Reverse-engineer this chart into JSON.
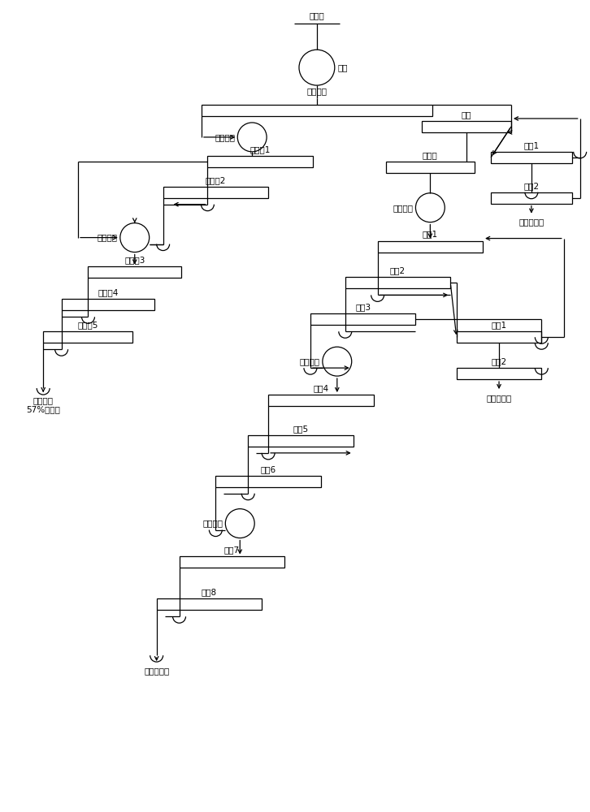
{
  "bg_color": "#ffffff",
  "ec": "#000000",
  "lw": 0.9,
  "fs": 7.5,
  "bh": 0.018,
  "r_circle": 0.022,
  "labels": {
    "moly_ore": "钼原矿",
    "grinding": "磨矿",
    "fast_float": "快速浮选",
    "stage1_regrind_L": "一段再磨",
    "kfj1": "快浮精1",
    "kfj2": "快浮精2",
    "stage2_regrind_L": "二段再磨",
    "kfj3": "快浮精3",
    "kfj4": "快浮精4",
    "kfj5": "快浮精5",
    "grade57": "品位大于\n57%钼精矿",
    "rough_select": "粗选",
    "pre_select": "预精选",
    "cs1": "粗扫1",
    "cs2": "粗扫2",
    "moly_coarse_tail": "钼粗扫尾矿",
    "stage1_regrind_R": "一段再磨",
    "jx1": "精选1",
    "jx2": "精选2",
    "jx3": "精选3",
    "stage2_regrind_R": "二段再磨",
    "jingsao1": "精扫1",
    "jingsao2": "精扫2",
    "moly_fine_tail": "钼精扫尾矿",
    "jx4": "精选4",
    "jx5": "精选5",
    "jx6": "精选6",
    "stage1_scrub": "一段擦洗",
    "jx7": "精选7",
    "jx8": "精选8",
    "common_moly": "普通钼精矿"
  }
}
